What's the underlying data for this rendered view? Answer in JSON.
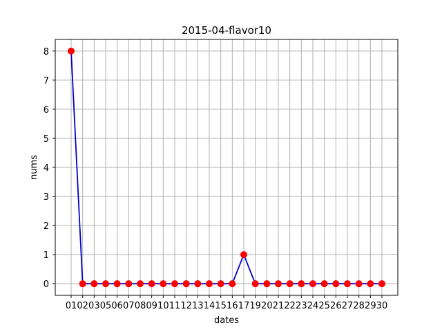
{
  "chart_data": {
    "type": "line",
    "title": "2015-04-flavor10",
    "xlabel": "dates",
    "ylabel": "nums",
    "categories": [
      "01",
      "02",
      "03",
      "05",
      "06",
      "07",
      "08",
      "09",
      "10",
      "11",
      "12",
      "13",
      "14",
      "15",
      "16",
      "17",
      "19",
      "20",
      "21",
      "22",
      "23",
      "24",
      "25",
      "26",
      "27",
      "28",
      "29",
      "30"
    ],
    "series": [
      {
        "name": "nums",
        "values": [
          8,
          0,
          0,
          0,
          0,
          0,
          0,
          0,
          0,
          0,
          0,
          0,
          0,
          0,
          0,
          1,
          0,
          0,
          0,
          0,
          0,
          0,
          0,
          0,
          0,
          0,
          0,
          0
        ],
        "line_color": "#0000cc",
        "marker_color": "#ff0000"
      }
    ],
    "yticks": [
      0,
      1,
      2,
      3,
      4,
      5,
      6,
      7,
      8
    ],
    "ylim": [
      -0.4,
      8.4
    ],
    "grid": true
  }
}
